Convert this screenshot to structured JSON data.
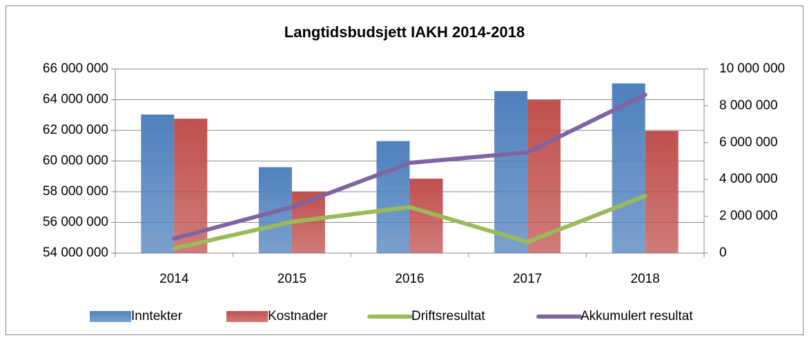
{
  "chart_data": {
    "type": "bar",
    "title": "Langtidsbudsjett IAKH 2014-2018",
    "categories": [
      "2014",
      "2015",
      "2016",
      "2017",
      "2018"
    ],
    "series": [
      {
        "name": "Inntekter",
        "color": "#4f81bd",
        "type": "bar",
        "values": [
          63030000,
          59600000,
          61300000,
          64560000,
          65060000
        ]
      },
      {
        "name": "Kostnader",
        "color": "#c0504d",
        "type": "bar",
        "values": [
          62760000,
          58000000,
          58850000,
          63980000,
          61960000
        ]
      },
      {
        "name": "Driftsresultat",
        "color": "#9bbb59",
        "type": "line",
        "axis": "y2",
        "values": [
          260000,
          1700000,
          2500000,
          600000,
          3100000
        ]
      },
      {
        "name": "Akkumulert resultat",
        "color": "#8064a2",
        "type": "line",
        "axis": "y2",
        "values": [
          790000,
          2500000,
          4900000,
          5470000,
          8600000
        ]
      }
    ],
    "ylim": [
      54000000,
      66000000
    ],
    "yticks": [
      {
        "value": 54000000,
        "label": "54 000 000"
      },
      {
        "value": 56000000,
        "label": "56 000 000"
      },
      {
        "value": 58000000,
        "label": "58 000 000"
      },
      {
        "value": 60000000,
        "label": "60 000 000"
      },
      {
        "value": 62000000,
        "label": "62 000 000"
      },
      {
        "value": 64000000,
        "label": "64 000 000"
      },
      {
        "value": 66000000,
        "label": "66 000 000"
      }
    ],
    "y2lim": [
      0,
      10000000
    ],
    "y2ticks": [
      0,
      {
        "value": 2000000,
        "label": "2 000 000"
      },
      {
        "value": 4000000,
        "label": "4 000 000"
      },
      {
        "value": 6000000,
        "label": "6 000 000"
      },
      {
        "value": 8000000,
        "label": "8 000 000"
      },
      {
        "value": 10000000,
        "label": "10 000 000"
      }
    ],
    "grid": true,
    "legend": "bottom"
  }
}
